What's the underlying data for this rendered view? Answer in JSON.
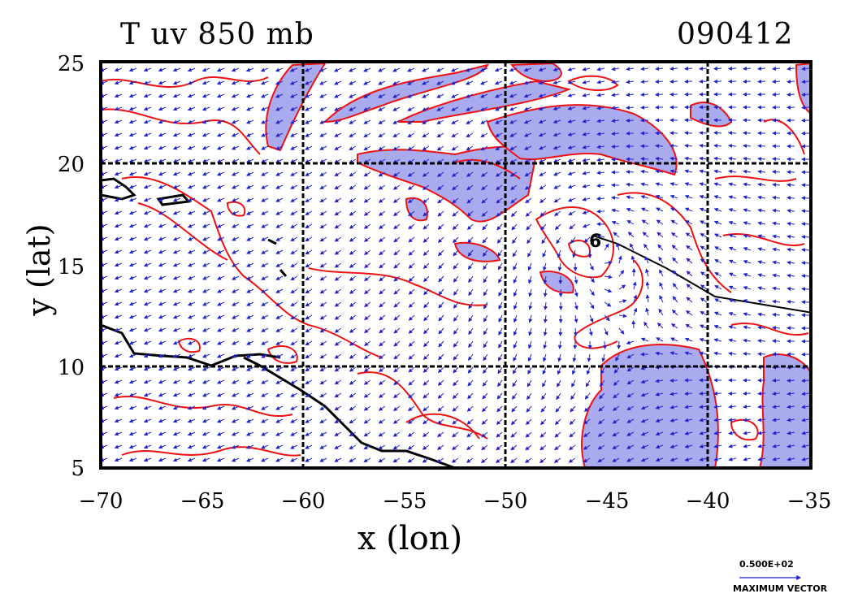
{
  "title": {
    "left": "T uv 850 mb",
    "right": "090412"
  },
  "axes": {
    "xlabel": "x (lon)",
    "ylabel": "y (lat)",
    "xticks": [
      "−70",
      "−65",
      "−60",
      "−55",
      "−50",
      "−45",
      "−40",
      "−35"
    ],
    "yticks": [
      "25",
      "20",
      "15",
      "10",
      "5"
    ],
    "xrange": [
      -70,
      -35
    ],
    "yrange": [
      5,
      25
    ]
  },
  "legend": {
    "vector_value": "0.500E+02",
    "vector_label": "MAXIMUM VECTOR"
  },
  "storm_marker": {
    "symbol": "6",
    "lon": -45.4,
    "lat": 16.2
  },
  "colors": {
    "contour": "#ee1111",
    "shade": "#aaaaee",
    "vector": "#2222cc",
    "coast": "#000000"
  }
}
